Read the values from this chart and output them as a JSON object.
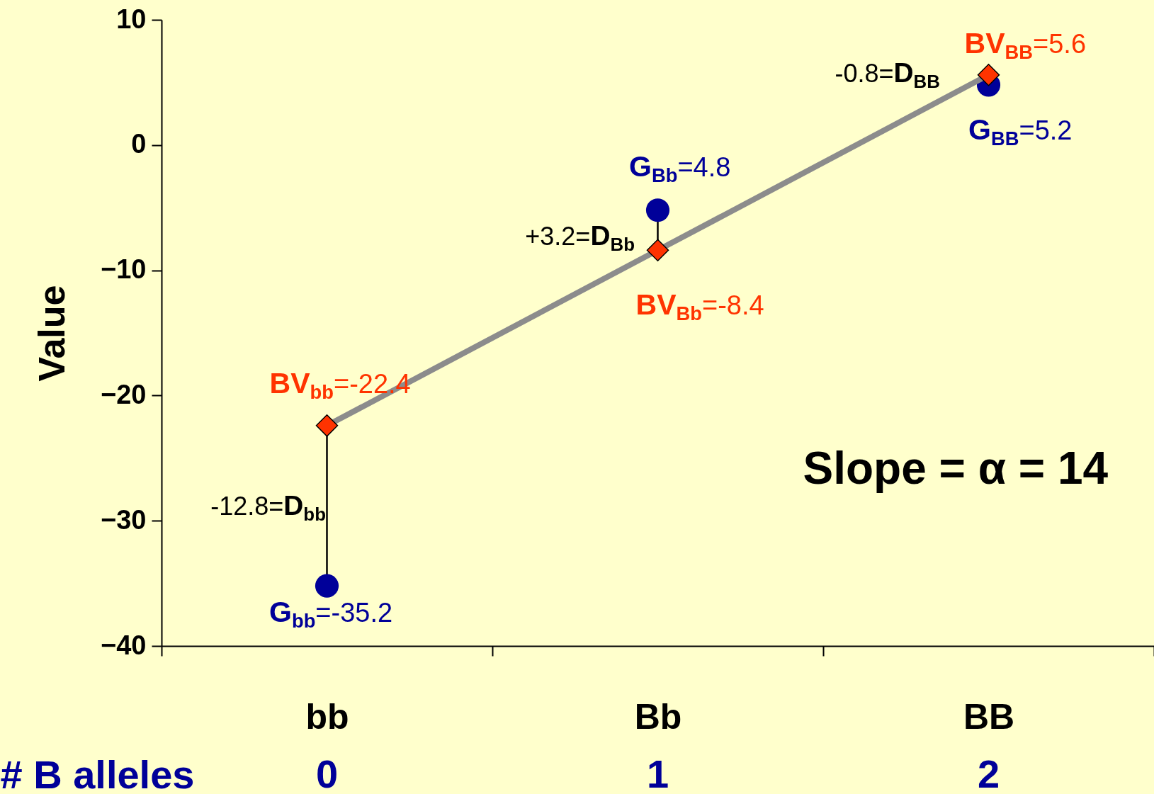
{
  "chart_data": {
    "type": "line",
    "xlabel": "# B alleles",
    "ylabel": "Value",
    "categories": [
      "bb",
      "Bb",
      "BB"
    ],
    "ylim": [
      -40,
      10
    ],
    "yticks": [
      -40,
      -30,
      -20,
      -10,
      0,
      10
    ],
    "grid": false,
    "series": [
      {
        "color": "#ff3300",
        "marker": "diamond",
        "values": [
          -22.4,
          -8.4,
          5.6
        ],
        "value_labels": [
          "BV$_{bb}$=-22.4",
          "BV$_{Bb}$=-8.4",
          "BV$_{BB}$=5.6"
        ]
      },
      {
        "type": "scatter",
        "color": "#000099",
        "marker": "circle",
        "values": [
          -35.2,
          -5.2,
          4.8
        ]
      }
    ],
    "annotations": [
      {
        "text": "-12.8=D$_{bb}$",
        "x": "bb",
        "y": -22.4
      },
      {
        "text": "+3.2=D$_{Bb}$",
        "x": "Bb",
        "y": -8.4
      },
      {
        "text": "-0.8=D$_{BB}$",
        "x": "BB",
        "y": 5.6
      },
      {
        "text": "G$_{bb}$=-35.2",
        "x": "bb",
        "y": -35.2
      },
      {
        "text": "G$_{Bb}$=4.8",
        "x": "Bb",
        "y": -5.2
      },
      {
        "text": "G$_{BB}$=5.2",
        "x": "BB",
        "y": 4.8
      },
      "0",
      "1",
      "2",
      "Slope = α = 14"
    ]
  }
}
